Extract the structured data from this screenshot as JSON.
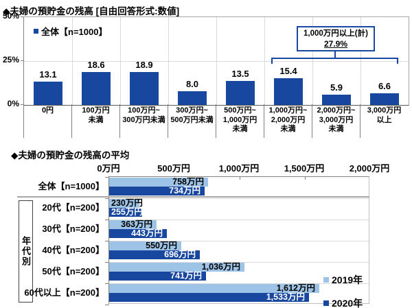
{
  "colors": {
    "navy": "#17479E",
    "light_blue": "#9DC3E6",
    "axis_gray": "#808080",
    "grid_gray": "#D9D9D9",
    "border_gray": "#A6A6A6"
  },
  "chart_data": [
    {
      "type": "bar",
      "title": "◆夫婦の預貯金の残高 [自由回答形式:数値]",
      "legend": "全体【n=1000】",
      "unit": "%",
      "ylim": [
        0,
        50
      ],
      "yticks": [
        {
          "label": "50%",
          "value": 50
        },
        {
          "label": "25%",
          "value": 25
        },
        {
          "label": "0%",
          "value": 0
        }
      ],
      "categories": [
        [
          "0円"
        ],
        [
          "100万円",
          "未満"
        ],
        [
          "100万円~",
          "300万円未満"
        ],
        [
          "300万円~",
          "500万円未満"
        ],
        [
          "500万円~",
          "1,000万円",
          "未満"
        ],
        [
          "1,000万円~",
          "2,000万円",
          "未満"
        ],
        [
          "2,000万円~",
          "3,000万円",
          "未満"
        ],
        [
          "3,000万円",
          "以上"
        ]
      ],
      "values": [
        13.1,
        18.6,
        18.9,
        8.0,
        13.5,
        15.4,
        5.9,
        6.6
      ],
      "value_labels": [
        "13.1",
        "18.6",
        "18.9",
        "8.0",
        "13.5",
        "15.4",
        "5.9",
        "6.6"
      ],
      "bar_color": "#17479E",
      "grid": "on",
      "annotation": {
        "line1": "1,000万円以上(計)",
        "line2": "27.9%",
        "covers": "last 3 categories"
      }
    },
    {
      "type": "bar-horizontal",
      "title": "◆夫婦の預貯金の残高の平均",
      "unit": "万円",
      "xlim": [
        0,
        2000
      ],
      "xticks": [
        {
          "label": "0万円",
          "value": 0
        },
        {
          "label": "500万円",
          "value": 500
        },
        {
          "label": "1,000万円",
          "value": 1000
        },
        {
          "label": "1,500万円",
          "value": 1500
        },
        {
          "label": "2,000万円",
          "value": 2000
        }
      ],
      "categories": [
        "全体【n=1000】",
        "20代【n=200】",
        "30代【n=200】",
        "40代【n=200】",
        "50代【n=200】",
        "60代以上【n=200】"
      ],
      "group_label": "年代別",
      "group_rows": "20代〜60代以上",
      "legend_position": "right-inside",
      "series": [
        {
          "name": "2019年",
          "color": "#9DC3E6",
          "text_color": "#000000",
          "values": [
            758,
            230,
            363,
            550,
            1036,
            1612
          ],
          "value_labels": [
            "758万円",
            "230万円",
            "363万円",
            "550万円",
            "1,036万円",
            "1,612万円"
          ]
        },
        {
          "name": "2020年",
          "color": "#17479E",
          "text_color": "#FFFFFF",
          "values": [
            734,
            255,
            443,
            696,
            741,
            1533
          ],
          "value_labels": [
            "734万円",
            "255万円",
            "443万円",
            "696万円",
            "741万円",
            "1,533万円"
          ]
        }
      ]
    }
  ]
}
